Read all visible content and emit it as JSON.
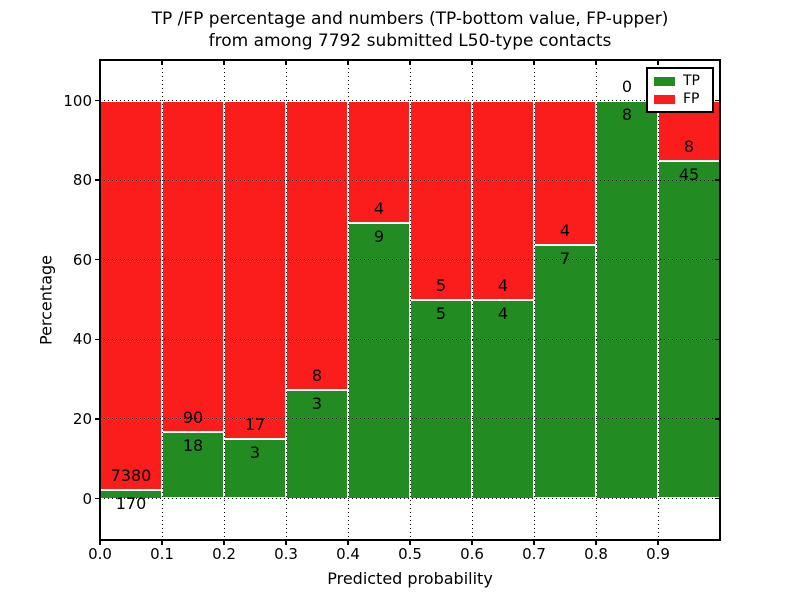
{
  "title": {
    "line1": "TP /FP percentage and numbers (TP-bottom value, FP-upper)",
    "line2": "from among 7792 submitted L50-type contacts"
  },
  "axes": {
    "xlabel": "Predicted probability",
    "ylabel": "Percentage",
    "xtick_labels": [
      "0.0",
      "0.1",
      "0.2",
      "0.3",
      "0.4",
      "0.5",
      "0.6",
      "0.7",
      "0.8",
      "0.9"
    ],
    "ytick_labels": [
      "0",
      "20",
      "40",
      "60",
      "80",
      "100"
    ]
  },
  "legend": {
    "position": "upper-right",
    "entries": [
      {
        "label": "TP",
        "color": "#228b22"
      },
      {
        "label": "FP",
        "color": "#fb1c1c"
      }
    ]
  },
  "chart_data": {
    "type": "bar",
    "stacked": true,
    "normalized_to_percent": true,
    "title": "TP /FP percentage and numbers (TP-bottom value, FP-upper) from among 7792 submitted L50-type contacts",
    "xlabel": "Predicted probability",
    "ylabel": "Percentage",
    "total_contacts": 7792,
    "bin_edges": [
      0.0,
      0.1,
      0.2,
      0.3,
      0.4,
      0.5,
      0.6,
      0.7,
      0.8,
      0.9,
      1.0
    ],
    "xticks": [
      0.0,
      0.1,
      0.2,
      0.3,
      0.4,
      0.5,
      0.6,
      0.7,
      0.8,
      0.9
    ],
    "yticks": [
      0,
      20,
      40,
      60,
      80,
      100
    ],
    "xlim": [
      0.0,
      1.0
    ],
    "ylim": [
      -10.5,
      110.5
    ],
    "grid": "dotted",
    "series": [
      {
        "name": "TP",
        "color": "#228b22",
        "counts": [
          170,
          18,
          3,
          3,
          9,
          5,
          4,
          7,
          8,
          45
        ]
      },
      {
        "name": "FP",
        "color": "#fb1c1c",
        "counts": [
          7380,
          90,
          17,
          8,
          4,
          5,
          4,
          4,
          0,
          8
        ]
      }
    ],
    "tp_percent": [
      2.25,
      16.67,
      15.0,
      27.27,
      69.23,
      50.0,
      50.0,
      63.64,
      100.0,
      84.91
    ],
    "annotation_rule": "FP count printed just above each TP/FP boundary, TP count just below it"
  },
  "colors": {
    "tp_green": "#228b22",
    "fp_red": "#fb1c1c",
    "background": "#ffffff",
    "grid": "#000000"
  }
}
